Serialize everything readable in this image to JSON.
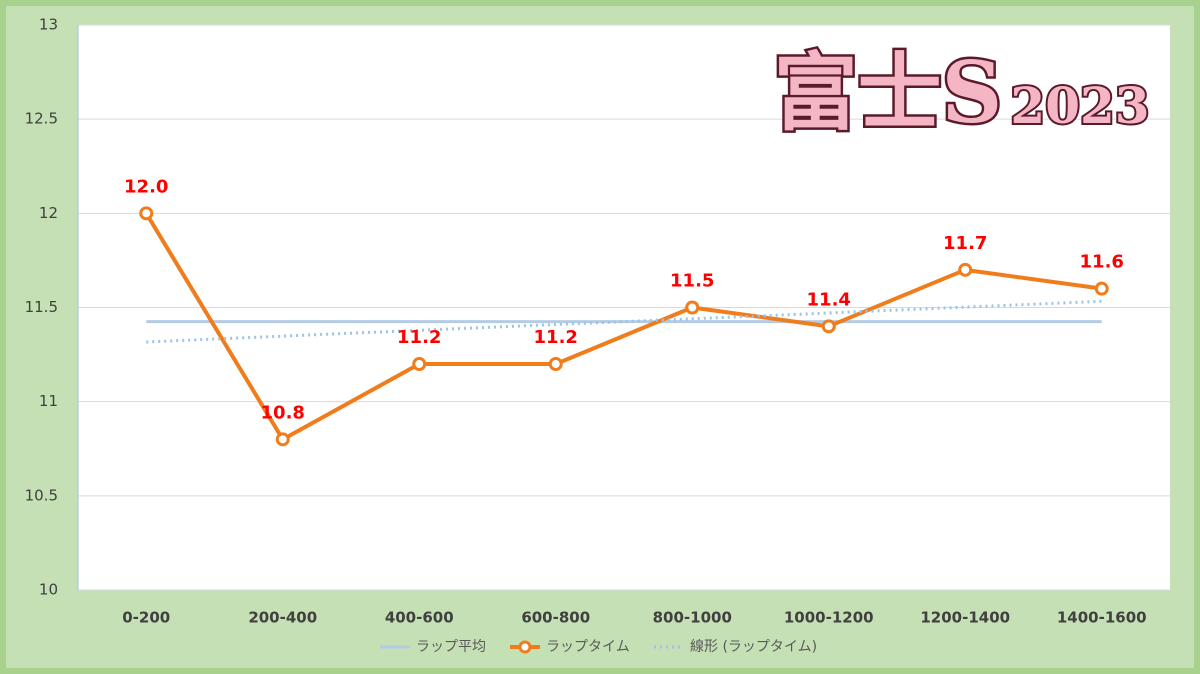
{
  "chart_data": {
    "type": "line",
    "title": "富士S",
    "subtitle": "2023",
    "categories": [
      "0-200",
      "200-400",
      "400-600",
      "600-800",
      "800-1000",
      "1000-1200",
      "1200-1400",
      "1400-1600"
    ],
    "series": [
      {
        "name": "ラップ平均",
        "color": "#b4cbe6",
        "line_style": "solid",
        "markers": false,
        "values": [
          11.425,
          11.425,
          11.425,
          11.425,
          11.425,
          11.425,
          11.425,
          11.425
        ]
      },
      {
        "name": "ラップタイム",
        "color": "#f07c1c",
        "line_style": "solid",
        "markers": true,
        "label_color": "#ff0000",
        "values": [
          12.0,
          10.8,
          11.2,
          11.2,
          11.5,
          11.4,
          11.7,
          11.6
        ],
        "value_labels": [
          "12.0",
          "10.8",
          "11.2",
          "11.2",
          "11.5",
          "11.4",
          "11.7",
          "11.6"
        ]
      },
      {
        "name": "線形 (ラップタイム)",
        "color": "#9dc3e6",
        "line_style": "dotted",
        "markers": false,
        "values": [
          11.317,
          11.348,
          11.379,
          11.41,
          11.44,
          11.471,
          11.502,
          11.533
        ]
      }
    ],
    "ylim": [
      10,
      13
    ],
    "yticks": [
      10,
      10.5,
      11,
      11.5,
      12,
      12.5,
      13
    ],
    "grid": true,
    "legend": "bottom"
  }
}
